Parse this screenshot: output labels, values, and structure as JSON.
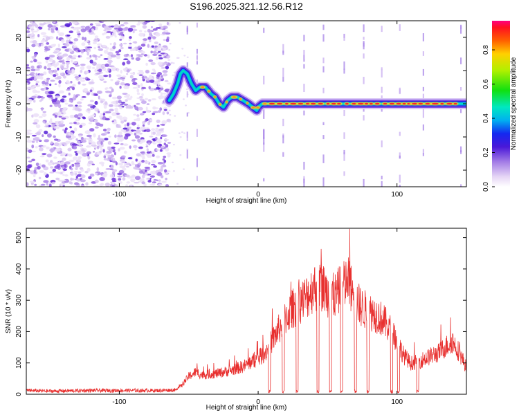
{
  "chart_data": [
    {
      "type": "heatmap",
      "title": "S196.2025.321.12.56.R12",
      "xlabel": "Height of straight line (km)",
      "ylabel": "Frequency (Hz)",
      "xlim": [
        -167,
        150
      ],
      "ylim": [
        -25,
        25
      ],
      "xticks": [
        -100,
        0,
        100
      ],
      "yticks": [
        -20,
        -10,
        0,
        10,
        20
      ],
      "noise_region_x": [
        -167,
        -64
      ],
      "ridge": {
        "x": [
          -64,
          -61,
          -58,
          -56,
          -54,
          -51,
          -48,
          -45,
          -42,
          -38,
          -34,
          -31,
          -28,
          -25,
          -22,
          -19,
          -15,
          -11,
          -7,
          -4,
          -1,
          0,
          3,
          6,
          10,
          20,
          40,
          60,
          80,
          100,
          120,
          150
        ],
        "freq": [
          1,
          3,
          6,
          9,
          10,
          9,
          6,
          4,
          5,
          5,
          3,
          2,
          0,
          -1,
          1,
          2,
          2,
          1,
          0,
          -1,
          -2,
          -1,
          0,
          0,
          0,
          0,
          0,
          0,
          0,
          0,
          0,
          0
        ]
      },
      "vertical_streaks_x": [
        -51,
        -44,
        4,
        18,
        33,
        47,
        62,
        76,
        89,
        102,
        119,
        146
      ],
      "colorbar": {
        "label": "Normalized spectral amplitude",
        "ticks": [
          "0.0",
          "0.2",
          "0.4",
          "0.6",
          "0.8"
        ],
        "range": [
          0,
          0.97
        ]
      }
    },
    {
      "type": "line",
      "xlabel": "Height of straight line (km)",
      "ylabel": "SNR (10 * v/v)",
      "xlim": [
        -167,
        150
      ],
      "ylim": [
        0,
        530
      ],
      "xticks": [
        -100,
        0,
        100
      ],
      "yticks": [
        0,
        100,
        200,
        300,
        400,
        500
      ],
      "line_color": "#e8302f",
      "envelope": {
        "x": [
          -167,
          -150,
          -120,
          -90,
          -70,
          -60,
          -55,
          -50,
          -45,
          -40,
          -30,
          -20,
          -10,
          -5,
          0,
          5,
          10,
          15,
          20,
          25,
          30,
          35,
          40,
          45,
          50,
          55,
          60,
          65,
          70,
          75,
          80,
          85,
          90,
          95,
          100,
          105,
          110,
          115,
          120,
          125,
          130,
          135,
          140,
          145,
          150
        ],
        "y": [
          12,
          10,
          12,
          12,
          12,
          14,
          30,
          60,
          75,
          65,
          70,
          80,
          95,
          110,
          120,
          140,
          180,
          220,
          260,
          290,
          310,
          330,
          360,
          370,
          340,
          330,
          360,
          380,
          320,
          290,
          280,
          270,
          250,
          220,
          180,
          130,
          105,
          110,
          120,
          130,
          140,
          160,
          180,
          140,
          90
        ]
      },
      "dropout_x": [
        8,
        18,
        28,
        43,
        52,
        60,
        70,
        79,
        96,
        101,
        115
      ]
    }
  ]
}
